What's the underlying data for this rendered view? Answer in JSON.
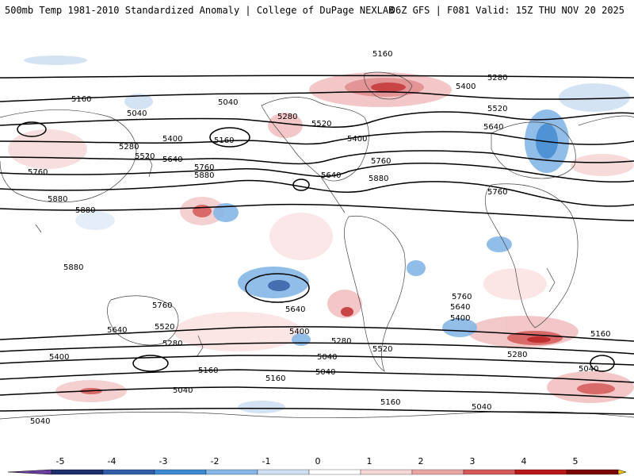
{
  "header": {
    "title_left": "500mb Temp 1981-2010 Standardized Anomaly | College of DuPage NEXLAB",
    "title_right": "06Z GFS | F081 Valid: 15Z THU NOV 20 2025"
  },
  "colorbar": {
    "ticks": [
      "-5",
      "-4",
      "-3",
      "-2",
      "-1",
      "0",
      "1",
      "2",
      "3",
      "4",
      "5"
    ],
    "colors": [
      "#6b3fa0",
      "#1c2f6b",
      "#2f5fa8",
      "#3d88d0",
      "#86b7e6",
      "#cfe0f2",
      "#ffffff",
      "#f7d6d6",
      "#eaa5a5",
      "#d45a5a",
      "#b81818",
      "#7a0000",
      "#f5c400"
    ]
  },
  "contours": {
    "labels": [
      {
        "text": "5160"
      },
      {
        "text": "5280"
      },
      {
        "text": "5400"
      },
      {
        "text": "5520"
      },
      {
        "text": "5640"
      },
      {
        "text": "5160"
      },
      {
        "text": "5040"
      },
      {
        "text": "5040"
      },
      {
        "text": "5160"
      },
      {
        "text": "5280"
      },
      {
        "text": "5400"
      },
      {
        "text": "5520"
      },
      {
        "text": "5640"
      },
      {
        "text": "5760"
      },
      {
        "text": "5880"
      },
      {
        "text": "5760"
      },
      {
        "text": "5880"
      },
      {
        "text": "5880"
      },
      {
        "text": "5880"
      },
      {
        "text": "5280"
      },
      {
        "text": "5520"
      },
      {
        "text": "5400"
      },
      {
        "text": "5640"
      },
      {
        "text": "5760"
      },
      {
        "text": "5880"
      },
      {
        "text": "5760"
      },
      {
        "text": "5760"
      },
      {
        "text": "5640"
      },
      {
        "text": "5640"
      },
      {
        "text": "5520"
      },
      {
        "text": "5400"
      },
      {
        "text": "5280"
      },
      {
        "text": "5400"
      },
      {
        "text": "5280"
      },
      {
        "text": "5520"
      },
      {
        "text": "5760"
      },
      {
        "text": "5640"
      },
      {
        "text": "5400"
      },
      {
        "text": "5280"
      },
      {
        "text": "5160"
      },
      {
        "text": "5040"
      },
      {
        "text": "5040"
      },
      {
        "text": "5160"
      },
      {
        "text": "5040"
      },
      {
        "text": "5040"
      },
      {
        "text": "5160"
      },
      {
        "text": "5040"
      },
      {
        "text": "5160"
      },
      {
        "text": "5040"
      }
    ]
  }
}
